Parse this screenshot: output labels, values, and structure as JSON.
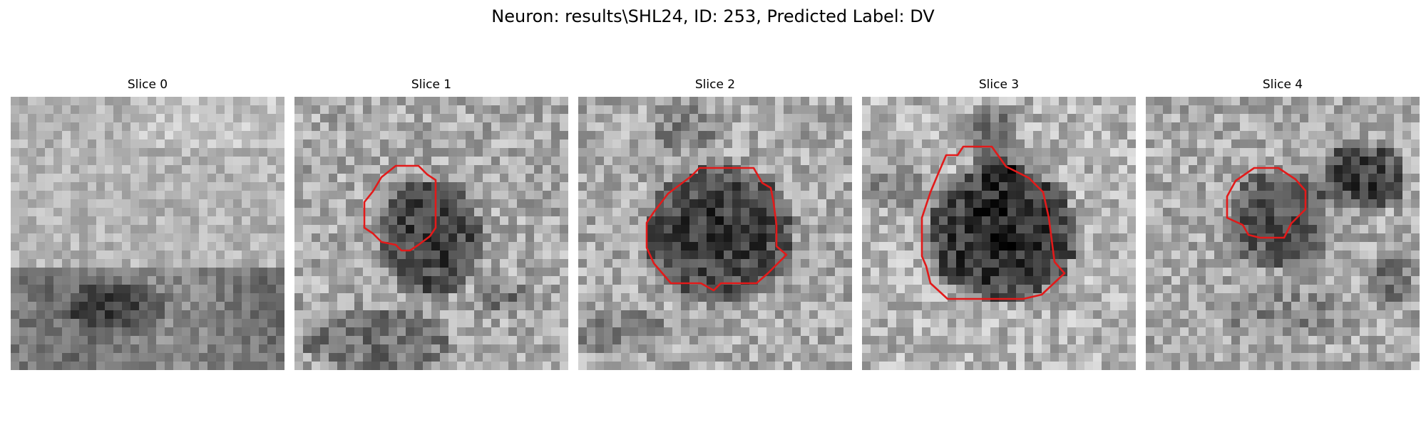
{
  "title": "Neuron: results\\SHL24, ID: 253, Predicted Label: DV",
  "outline_color": "#e21a1a",
  "slices": [
    {
      "label": "Slice 0",
      "seed": 11,
      "has_contour": false
    },
    {
      "label": "Slice 1",
      "seed": 23,
      "has_contour": true
    },
    {
      "label": "Slice 2",
      "seed": 37,
      "has_contour": true
    },
    {
      "label": "Slice 3",
      "seed": 41,
      "has_contour": true
    },
    {
      "label": "Slice 4",
      "seed": 53,
      "has_contour": true
    }
  ]
}
